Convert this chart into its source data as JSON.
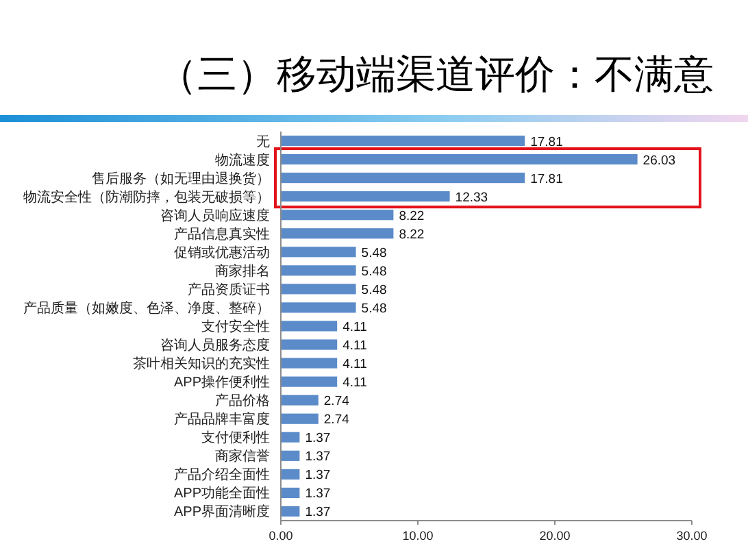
{
  "chart_data": {
    "type": "bar",
    "orientation": "horizontal",
    "title": "（三）移动端渠道评价：不满意",
    "categories": [
      "无",
      "物流速度",
      "售后服务（如无理由退换货）",
      "物流安全性（防潮防摔，包装无破损等）",
      "咨询人员响应速度",
      "产品信息真实性",
      "促销或优惠活动",
      "商家排名",
      "产品资质证书",
      "产品质量（如嫩度、色泽、净度、整碎）",
      "支付安全性",
      "咨询人员服务态度",
      "茶叶相关知识的充实性",
      "APP操作便利性",
      "产品价格",
      "产品品牌丰富度",
      "支付便利性",
      "商家信誉",
      "产品介绍全面性",
      "APP功能全面性",
      "APP界面清晰度"
    ],
    "values": [
      17.81,
      26.03,
      17.81,
      12.33,
      8.22,
      8.22,
      5.48,
      5.48,
      5.48,
      5.48,
      4.11,
      4.11,
      4.11,
      4.11,
      2.74,
      2.74,
      1.37,
      1.37,
      1.37,
      1.37,
      1.37
    ],
    "color": "#5b8bc9",
    "xlim": [
      0,
      30
    ],
    "xticks": [
      {
        "value": 0,
        "label": "0.00"
      },
      {
        "value": 10,
        "label": "10.00"
      },
      {
        "value": 20,
        "label": "20.00"
      },
      {
        "value": 30,
        "label": "30.00"
      }
    ],
    "data_labels": true
  }
}
